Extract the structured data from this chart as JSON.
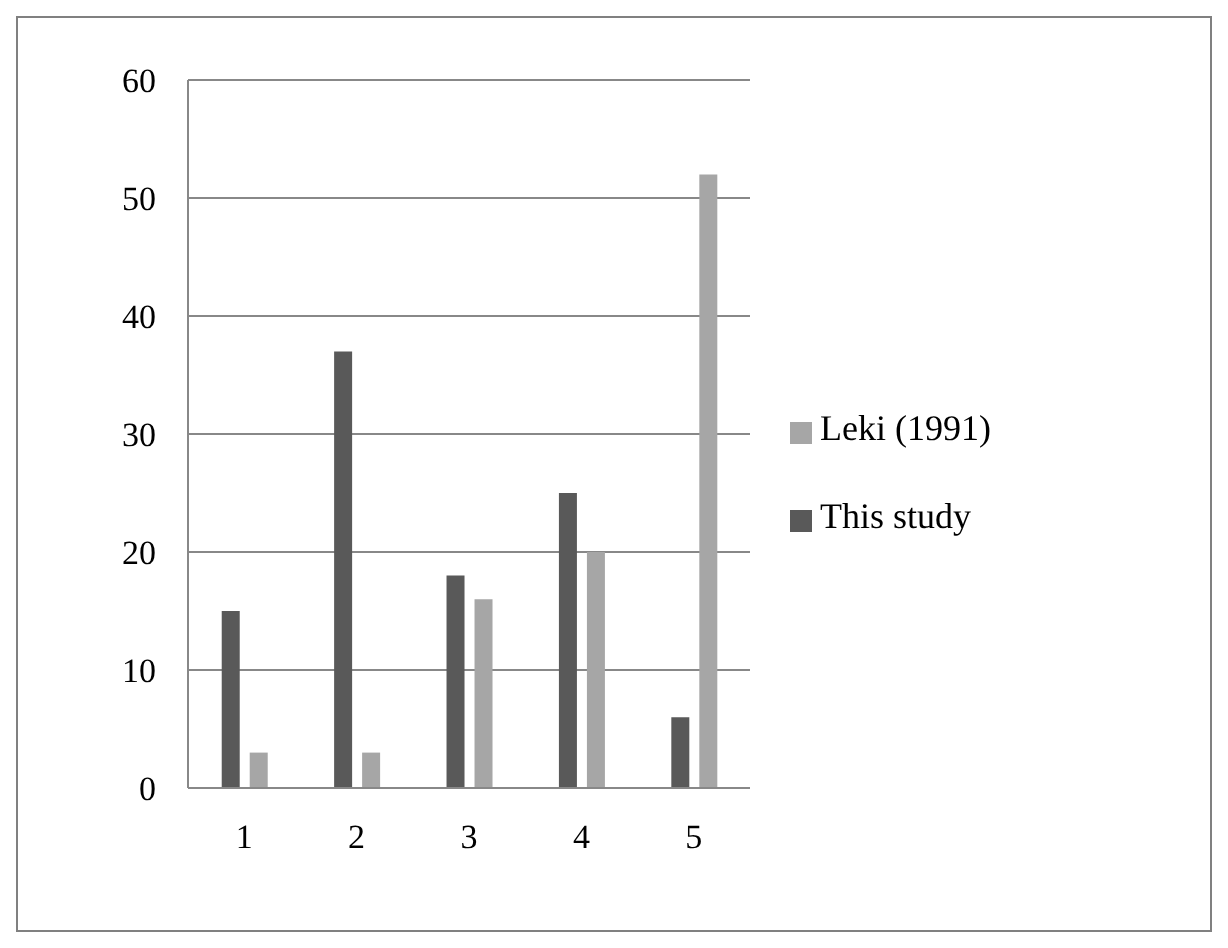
{
  "chart_data": {
    "type": "bar",
    "categories": [
      "1",
      "2",
      "3",
      "4",
      "5"
    ],
    "series": [
      {
        "name": "This study",
        "color": "#595959",
        "values": [
          15,
          37,
          18,
          25,
          6
        ]
      },
      {
        "name": "Leki (1991)",
        "color": "#a6a6a6",
        "values": [
          3,
          3,
          16,
          20,
          52
        ]
      }
    ],
    "ylim": [
      0,
      60
    ],
    "yticks": [
      0,
      10,
      20,
      30,
      40,
      50,
      60
    ],
    "grid": "y",
    "legend": "right"
  }
}
